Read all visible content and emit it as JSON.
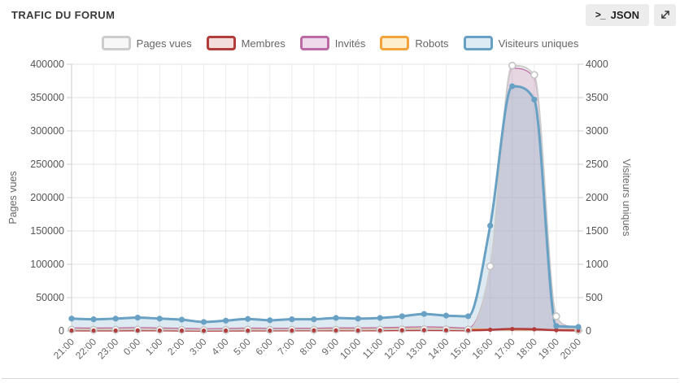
{
  "header": {
    "title": "TRAFIC DU FORUM",
    "json_button": {
      "icon": ">_",
      "label": "JSON"
    }
  },
  "chart_data": {
    "type": "area",
    "x": [
      "21:00",
      "22:00",
      "23:00",
      "0:00",
      "1:00",
      "2:00",
      "3:00",
      "4:00",
      "5:00",
      "6:00",
      "7:00",
      "8:00",
      "9:00",
      "10:00",
      "11:00",
      "12:00",
      "13:00",
      "14:00",
      "15:00",
      "16:00",
      "17:00",
      "18:00",
      "19:00",
      "20:00"
    ],
    "ylabel_left": "Pages vues",
    "ylabel_right": "Visiteurs uniques",
    "axis_left": {
      "min": 0,
      "max": 400000,
      "step": 50000
    },
    "axis_right": {
      "min": 0,
      "max": 4000,
      "step": 500
    },
    "grid": true,
    "legend_position": "top",
    "series": [
      {
        "name": "Pages vues",
        "axis": "left",
        "color": "#cccccc",
        "legend_fill": "#f7f7f7",
        "area_fill": "rgba(205,205,205,0.35)",
        "dots": "hollow",
        "line_width": 2,
        "values": [
          2100,
          1900,
          2000,
          2300,
          2000,
          1800,
          1500,
          1700,
          2000,
          1800,
          1900,
          1900,
          2100,
          2000,
          2200,
          2500,
          2800,
          2500,
          2200,
          97000,
          398000,
          384000,
          22000,
          1200
        ]
      },
      {
        "name": "Membres",
        "axis": "right",
        "color": "#b23b3b",
        "legend_fill": "#f3dcdc",
        "dots": "small",
        "line_width": 2.5,
        "values": [
          8,
          7,
          7,
          9,
          8,
          6,
          5,
          6,
          7,
          7,
          8,
          9,
          10,
          9,
          10,
          12,
          14,
          12,
          10,
          18,
          30,
          26,
          12,
          7
        ]
      },
      {
        "name": "Invités",
        "axis": "right",
        "color": "#bb6aa5",
        "legend_fill": "#eedaea",
        "area_fill": "rgba(187,106,165,0.18)",
        "line_width": 1.25,
        "values": [
          48,
          44,
          46,
          52,
          46,
          40,
          34,
          38,
          44,
          40,
          42,
          42,
          48,
          46,
          50,
          56,
          62,
          56,
          45,
          980,
          3940,
          3800,
          215,
          28
        ]
      },
      {
        "name": "Robots",
        "axis": "right",
        "color": "#f2a33c",
        "legend_fill": "#fdeecd",
        "line_width": 2,
        "values": [
          22,
          24,
          22,
          26,
          24,
          20,
          18,
          20,
          24,
          22,
          26,
          28,
          30,
          28,
          26,
          34,
          32,
          30,
          26,
          22,
          20,
          18,
          16,
          14
        ]
      },
      {
        "name": "Visiteurs uniques",
        "axis": "right",
        "color": "#68a1c4",
        "legend_fill": "#dcebf4",
        "area_fill": "rgba(104,161,196,0.22)",
        "dots": "solid",
        "line_width": 3,
        "values": [
          185,
          175,
          185,
          200,
          185,
          170,
          135,
          155,
          180,
          160,
          175,
          175,
          195,
          185,
          195,
          220,
          255,
          230,
          220,
          1580,
          3670,
          3470,
          75,
          60
        ]
      }
    ]
  }
}
